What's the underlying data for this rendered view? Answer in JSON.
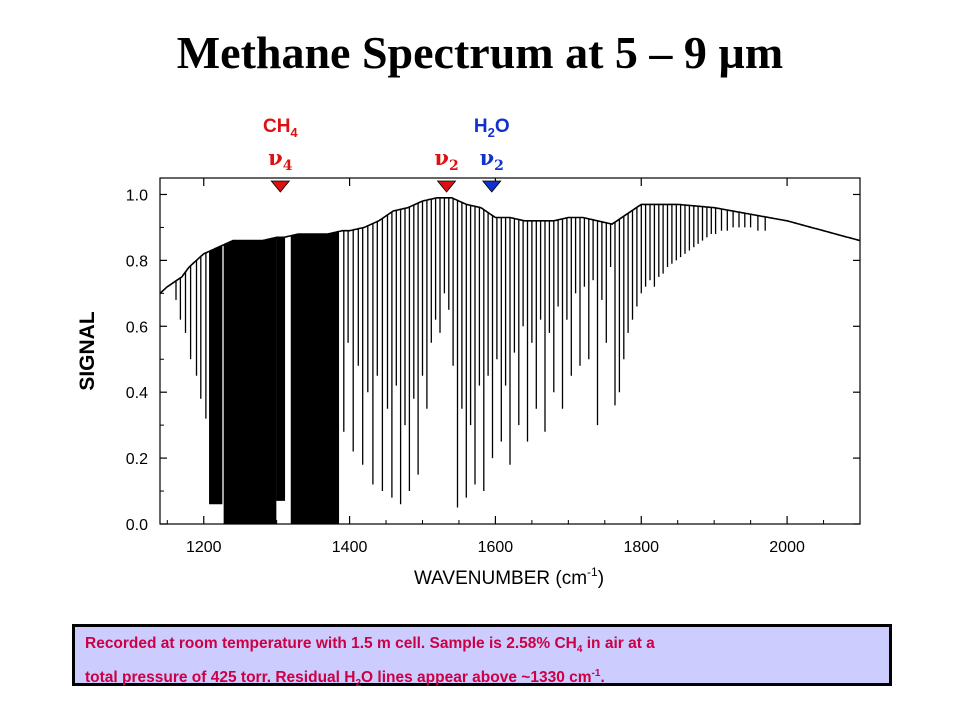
{
  "title": "Methane Spectrum at 5 – 9 µm",
  "caption": {
    "line1_a": "Recorded at room temperature with 1.5 m cell.  Sample is 2.58% CH",
    "line1_sub": "4",
    "line1_b": " in air at a",
    "line2_a": "total pressure of  425 torr.  Residual H",
    "line2_sub": "2",
    "line2_b": "O lines appear above ~1330 cm",
    "line2_sup": "-1",
    "line2_c": "."
  },
  "markers": [
    {
      "molecule": "CH",
      "molecule_sub": "4",
      "band": "ν",
      "band_sub": "4",
      "wavenumber": 1305,
      "color": "#dd1111"
    },
    {
      "molecule": "",
      "molecule_sub": "",
      "band": "ν",
      "band_sub": "2",
      "wavenumber": 1533,
      "color": "#dd1111"
    },
    {
      "molecule": "H",
      "molecule_sub": "2",
      "molecule_tail": "O",
      "band": "ν",
      "band_sub": "2",
      "wavenumber": 1595,
      "color": "#1133cc"
    }
  ],
  "colors": {
    "ch4": "#cc1133",
    "h2o": "#1133cc",
    "trace": "#000000",
    "caption_text": "#cc0044",
    "caption_bg": "#ccccff"
  },
  "chart_data": {
    "type": "line",
    "title": "",
    "xlabel": "WAVENUMBER (cm",
    "xlabel_sup": "-1",
    "xlabel_tail": ")",
    "ylabel": "SIGNAL",
    "xlim": [
      1140,
      2100
    ],
    "ylim": [
      0,
      1.05
    ],
    "x_ticks": [
      1200,
      1400,
      1600,
      1800,
      2000
    ],
    "y_ticks": [
      0.0,
      0.2,
      0.4,
      0.6,
      0.8,
      1.0
    ],
    "y_tick_labels": [
      "0.0",
      "0.2",
      "0.4",
      "0.6",
      "0.8",
      "1.0"
    ],
    "grid": false,
    "baseline": {
      "x": [
        1140,
        1150,
        1170,
        1180,
        1190,
        1200,
        1210,
        1220,
        1230,
        1240,
        1260,
        1280,
        1300,
        1310,
        1330,
        1350,
        1370,
        1390,
        1400,
        1420,
        1440,
        1460,
        1480,
        1500,
        1520,
        1540,
        1560,
        1580,
        1600,
        1620,
        1640,
        1660,
        1680,
        1700,
        1720,
        1740,
        1760,
        1780,
        1800,
        1820,
        1850,
        1900,
        1950,
        2000,
        2050,
        2100
      ],
      "y": [
        0.7,
        0.72,
        0.75,
        0.78,
        0.8,
        0.82,
        0.83,
        0.84,
        0.85,
        0.86,
        0.86,
        0.86,
        0.87,
        0.87,
        0.88,
        0.88,
        0.88,
        0.89,
        0.89,
        0.9,
        0.92,
        0.95,
        0.96,
        0.98,
        0.99,
        0.99,
        0.97,
        0.96,
        0.93,
        0.93,
        0.92,
        0.92,
        0.92,
        0.93,
        0.93,
        0.92,
        0.91,
        0.94,
        0.97,
        0.97,
        0.97,
        0.96,
        0.94,
        0.92,
        0.89,
        0.86
      ]
    },
    "deep_band_ranges": [
      [
        1208,
        1225,
        0.06
      ],
      [
        1228,
        1300,
        0.0
      ],
      [
        1300,
        1312,
        0.07
      ],
      [
        1320,
        1385,
        0.0
      ]
    ],
    "absorption_lines": [
      {
        "x": 1162,
        "y": 0.68
      },
      {
        "x": 1168,
        "y": 0.62
      },
      {
        "x": 1175,
        "y": 0.58
      },
      {
        "x": 1182,
        "y": 0.5
      },
      {
        "x": 1190,
        "y": 0.45
      },
      {
        "x": 1196,
        "y": 0.38
      },
      {
        "x": 1203,
        "y": 0.32
      },
      {
        "x": 1392,
        "y": 0.28
      },
      {
        "x": 1398,
        "y": 0.55
      },
      {
        "x": 1405,
        "y": 0.22
      },
      {
        "x": 1412,
        "y": 0.48
      },
      {
        "x": 1418,
        "y": 0.18
      },
      {
        "x": 1425,
        "y": 0.4
      },
      {
        "x": 1432,
        "y": 0.12
      },
      {
        "x": 1438,
        "y": 0.45
      },
      {
        "x": 1445,
        "y": 0.1
      },
      {
        "x": 1452,
        "y": 0.35
      },
      {
        "x": 1458,
        "y": 0.08
      },
      {
        "x": 1464,
        "y": 0.42
      },
      {
        "x": 1470,
        "y": 0.06
      },
      {
        "x": 1476,
        "y": 0.3
      },
      {
        "x": 1482,
        "y": 0.1
      },
      {
        "x": 1488,
        "y": 0.38
      },
      {
        "x": 1494,
        "y": 0.15
      },
      {
        "x": 1500,
        "y": 0.45
      },
      {
        "x": 1506,
        "y": 0.35
      },
      {
        "x": 1512,
        "y": 0.55
      },
      {
        "x": 1518,
        "y": 0.62
      },
      {
        "x": 1524,
        "y": 0.58
      },
      {
        "x": 1530,
        "y": 0.7
      },
      {
        "x": 1536,
        "y": 0.65
      },
      {
        "x": 1542,
        "y": 0.48
      },
      {
        "x": 1548,
        "y": 0.05
      },
      {
        "x": 1554,
        "y": 0.35
      },
      {
        "x": 1560,
        "y": 0.08
      },
      {
        "x": 1566,
        "y": 0.3
      },
      {
        "x": 1572,
        "y": 0.12
      },
      {
        "x": 1578,
        "y": 0.42
      },
      {
        "x": 1584,
        "y": 0.1
      },
      {
        "x": 1590,
        "y": 0.45
      },
      {
        "x": 1596,
        "y": 0.2
      },
      {
        "x": 1602,
        "y": 0.5
      },
      {
        "x": 1608,
        "y": 0.25
      },
      {
        "x": 1614,
        "y": 0.42
      },
      {
        "x": 1620,
        "y": 0.18
      },
      {
        "x": 1626,
        "y": 0.52
      },
      {
        "x": 1632,
        "y": 0.3
      },
      {
        "x": 1638,
        "y": 0.6
      },
      {
        "x": 1644,
        "y": 0.25
      },
      {
        "x": 1650,
        "y": 0.55
      },
      {
        "x": 1656,
        "y": 0.35
      },
      {
        "x": 1662,
        "y": 0.62
      },
      {
        "x": 1668,
        "y": 0.28
      },
      {
        "x": 1674,
        "y": 0.58
      },
      {
        "x": 1680,
        "y": 0.4
      },
      {
        "x": 1686,
        "y": 0.66
      },
      {
        "x": 1692,
        "y": 0.35
      },
      {
        "x": 1698,
        "y": 0.62
      },
      {
        "x": 1704,
        "y": 0.45
      },
      {
        "x": 1710,
        "y": 0.7
      },
      {
        "x": 1716,
        "y": 0.48
      },
      {
        "x": 1722,
        "y": 0.72
      },
      {
        "x": 1728,
        "y": 0.5
      },
      {
        "x": 1734,
        "y": 0.74
      },
      {
        "x": 1740,
        "y": 0.3
      },
      {
        "x": 1746,
        "y": 0.68
      },
      {
        "x": 1752,
        "y": 0.55
      },
      {
        "x": 1758,
        "y": 0.78
      },
      {
        "x": 1764,
        "y": 0.36
      },
      {
        "x": 1770,
        "y": 0.4
      },
      {
        "x": 1776,
        "y": 0.5
      },
      {
        "x": 1782,
        "y": 0.58
      },
      {
        "x": 1788,
        "y": 0.62
      },
      {
        "x": 1794,
        "y": 0.66
      },
      {
        "x": 1800,
        "y": 0.7
      },
      {
        "x": 1806,
        "y": 0.72
      },
      {
        "x": 1812,
        "y": 0.74
      },
      {
        "x": 1818,
        "y": 0.72
      },
      {
        "x": 1824,
        "y": 0.75
      },
      {
        "x": 1830,
        "y": 0.76
      },
      {
        "x": 1836,
        "y": 0.78
      },
      {
        "x": 1842,
        "y": 0.79
      },
      {
        "x": 1848,
        "y": 0.8
      },
      {
        "x": 1854,
        "y": 0.81
      },
      {
        "x": 1860,
        "y": 0.82
      },
      {
        "x": 1866,
        "y": 0.83
      },
      {
        "x": 1872,
        "y": 0.84
      },
      {
        "x": 1878,
        "y": 0.85
      },
      {
        "x": 1884,
        "y": 0.86
      },
      {
        "x": 1890,
        "y": 0.87
      },
      {
        "x": 1896,
        "y": 0.88
      },
      {
        "x": 1902,
        "y": 0.88
      },
      {
        "x": 1910,
        "y": 0.89
      },
      {
        "x": 1918,
        "y": 0.89
      },
      {
        "x": 1926,
        "y": 0.9
      },
      {
        "x": 1934,
        "y": 0.9
      },
      {
        "x": 1942,
        "y": 0.9
      },
      {
        "x": 1950,
        "y": 0.9
      },
      {
        "x": 1960,
        "y": 0.89
      },
      {
        "x": 1970,
        "y": 0.89
      }
    ]
  }
}
